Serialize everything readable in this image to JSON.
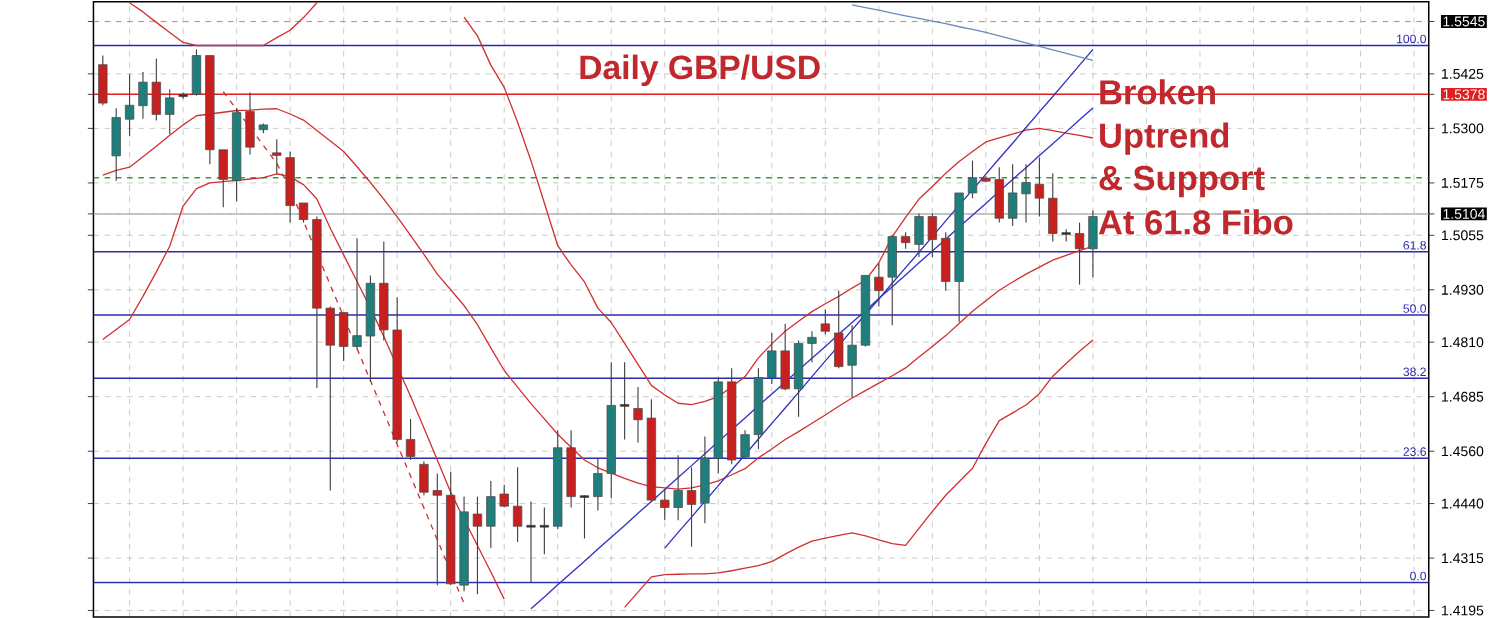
{
  "chart_data": {
    "type": "candlestick",
    "title": "Daily GBP/USD",
    "annotations": [
      "Broken",
      "Uptrend",
      "& Support",
      "At 61.8 Fibo",
      {
        "text": "100.0",
        "y": 1.549
      },
      {
        "text": "61.8",
        "y": 1.5017
      },
      {
        "text": "50.0",
        "y": 1.4872
      },
      {
        "text": "38.2",
        "y": 1.4727
      },
      {
        "text": "23.6",
        "y": 1.4544
      },
      {
        "text": "0.0",
        "y": 1.4259
      }
    ],
    "categories": [
      null,
      null,
      null,
      null,
      null,
      null,
      null,
      null,
      null,
      null,
      null,
      null,
      null,
      null,
      null,
      null,
      null,
      null,
      null,
      null,
      null,
      null,
      null,
      null,
      null,
      null,
      null,
      null,
      null,
      null,
      null,
      null,
      null,
      null,
      null,
      null,
      null,
      null,
      null,
      null,
      null,
      null,
      null,
      null,
      null,
      null,
      null,
      null,
      null,
      null,
      null,
      null,
      null,
      null,
      null,
      null,
      null,
      null,
      null,
      null,
      null,
      null,
      null,
      null,
      null,
      null,
      null,
      null,
      null,
      null,
      null,
      null,
      null,
      null,
      null
    ],
    "ohlc": [
      [
        1.5446,
        1.5467,
        1.5353,
        1.5358
      ],
      [
        1.5237,
        1.5346,
        1.518,
        1.5325
      ],
      [
        1.5321,
        1.5424,
        1.5282,
        1.5353
      ],
      [
        1.5352,
        1.5429,
        1.5322,
        1.5406
      ],
      [
        1.5406,
        1.546,
        1.5318,
        1.5332
      ],
      [
        1.5332,
        1.5389,
        1.5287,
        1.537
      ],
      [
        1.5375,
        1.5382,
        1.5368,
        1.5375
      ],
      [
        1.5378,
        1.5481,
        1.5375,
        1.5467
      ],
      [
        1.5467,
        1.5467,
        1.5218,
        1.5251
      ],
      [
        1.5251,
        1.5251,
        1.5119,
        1.5183
      ],
      [
        1.518,
        1.5346,
        1.5133,
        1.5336
      ],
      [
        1.5339,
        1.5382,
        1.524,
        1.5257
      ],
      [
        1.5297,
        1.5311,
        1.5289,
        1.5308
      ],
      [
        1.5244,
        1.5275,
        1.5197,
        1.5238
      ],
      [
        1.5233,
        1.5247,
        1.5084,
        1.5123
      ],
      [
        1.5129,
        1.5129,
        1.5084,
        1.5091
      ],
      [
        1.5091,
        1.5098,
        1.4705,
        1.4888
      ],
      [
        1.4888,
        1.4892,
        1.447,
        1.4803
      ],
      [
        1.4878,
        1.4878,
        1.4767,
        1.48
      ],
      [
        1.48,
        1.5048,
        1.4793,
        1.4825
      ],
      [
        1.4824,
        1.4963,
        1.4719,
        1.4945
      ],
      [
        1.4945,
        1.5041,
        1.4814,
        1.4838
      ],
      [
        1.4838,
        1.4913,
        1.458,
        1.4587
      ],
      [
        1.4587,
        1.4634,
        1.454,
        1.4548
      ],
      [
        1.453,
        1.4537,
        1.4459,
        1.4466
      ],
      [
        1.447,
        1.4509,
        1.4253,
        1.4459
      ],
      [
        1.4459,
        1.4513,
        1.4253,
        1.4256
      ],
      [
        1.4253,
        1.4456,
        1.4239,
        1.4421
      ],
      [
        1.4416,
        1.4456,
        1.4232,
        1.4388
      ],
      [
        1.4388,
        1.4492,
        1.4338,
        1.4456
      ],
      [
        1.4462,
        1.4483,
        1.4431,
        1.4434
      ],
      [
        1.4434,
        1.4523,
        1.4352,
        1.4388
      ],
      [
        1.4388,
        1.4445,
        1.426,
        1.4388
      ],
      [
        1.4388,
        1.4431,
        1.4324,
        1.4388
      ],
      [
        1.4388,
        1.4608,
        1.4381,
        1.4568
      ],
      [
        1.4568,
        1.4608,
        1.4431,
        1.4456
      ],
      [
        1.4456,
        1.4459,
        1.436,
        1.4456
      ],
      [
        1.4456,
        1.4544,
        1.4424,
        1.4509
      ],
      [
        1.4509,
        1.4764,
        1.4452,
        1.4665
      ],
      [
        1.4665,
        1.4764,
        1.4587,
        1.4665
      ],
      [
        1.4658,
        1.4707,
        1.458,
        1.4632
      ],
      [
        1.4636,
        1.4679,
        1.4445,
        1.4448
      ],
      [
        1.4448,
        1.4473,
        1.4402,
        1.4431
      ],
      [
        1.4431,
        1.4551,
        1.4402,
        1.447
      ],
      [
        1.447,
        1.4523,
        1.4341,
        1.4438
      ],
      [
        1.4441,
        1.4594,
        1.4395,
        1.4544
      ],
      [
        1.4544,
        1.4729,
        1.4509,
        1.4719
      ],
      [
        1.4719,
        1.475,
        1.453,
        1.454
      ],
      [
        1.4547,
        1.4608,
        1.4544,
        1.4598
      ],
      [
        1.4598,
        1.475,
        1.4565,
        1.4729
      ],
      [
        1.4729,
        1.4831,
        1.4714,
        1.479
      ],
      [
        1.479,
        1.4852,
        1.47,
        1.4703
      ],
      [
        1.4703,
        1.4814,
        1.4639,
        1.4807
      ],
      [
        1.4807,
        1.4835,
        1.4764,
        1.4821
      ],
      [
        1.4852,
        1.4885,
        1.4828,
        1.4835
      ],
      [
        1.4831,
        1.4928,
        1.475,
        1.4754
      ],
      [
        1.4757,
        1.4849,
        1.4683,
        1.4803
      ],
      [
        1.4803,
        1.4963,
        1.48,
        1.4963
      ],
      [
        1.4959,
        1.4991,
        1.4892,
        1.4928
      ],
      [
        1.4959,
        1.5055,
        1.4849,
        1.5052
      ],
      [
        1.5052,
        1.5062,
        1.5024,
        1.5038
      ],
      [
        1.5034,
        1.5105,
        1.5005,
        1.5098
      ],
      [
        1.5098,
        1.5105,
        1.5005,
        1.5045
      ],
      [
        1.5048,
        1.5062,
        1.4928,
        1.4949
      ],
      [
        1.4949,
        1.5152,
        1.4856,
        1.5152
      ],
      [
        1.5152,
        1.5226,
        1.514,
        1.5187
      ],
      [
        1.5186,
        1.519,
        1.5176,
        1.5179
      ],
      [
        1.5183,
        1.5211,
        1.5084,
        1.5094
      ],
      [
        1.5094,
        1.5218,
        1.5076,
        1.5152
      ],
      [
        1.515,
        1.5218,
        1.5084,
        1.5176
      ],
      [
        1.5172,
        1.5233,
        1.5098,
        1.514
      ],
      [
        1.514,
        1.5197,
        1.5041,
        1.5059
      ],
      [
        1.5059,
        1.5069,
        1.5041,
        1.5059
      ],
      [
        1.5059,
        1.5084,
        1.4942,
        1.5024
      ],
      [
        1.5024,
        1.5112,
        1.4959,
        1.5098
      ]
    ],
    "series": [
      {
        "type": "line",
        "color": "#d03030",
        "values": [
          null,
          null,
          1.5588,
          1.5567,
          1.5543,
          1.552,
          1.5497,
          1.549,
          1.549,
          1.549,
          1.549,
          1.549,
          1.549,
          1.5508,
          1.5525,
          1.5554,
          1.5588,
          null,
          null,
          null,
          null,
          null,
          null,
          null,
          null,
          null,
          null,
          1.5555,
          1.5512,
          1.5445,
          1.5394,
          1.5314,
          1.5226,
          1.5129,
          1.5031,
          1.4987,
          1.4948,
          1.4888,
          1.4855,
          1.4807,
          1.4759,
          1.4711,
          1.4689,
          1.467,
          1.4667,
          1.4674,
          1.4685,
          1.4708,
          1.4731,
          1.4774,
          1.4806,
          1.4835,
          1.4858,
          1.488,
          1.4898,
          1.4915,
          1.4934,
          1.4952,
          1.4992,
          1.5052,
          1.5096,
          1.5138,
          1.5167,
          1.5197,
          1.5224,
          1.5247,
          1.5269,
          1.5278,
          1.5287,
          1.5296,
          1.53,
          1.5295,
          1.5289,
          1.5284,
          1.5278
        ]
      },
      {
        "type": "line",
        "color": "#d03030",
        "values": [
          1.5193,
          1.5204,
          1.5211,
          1.5235,
          1.5259,
          1.5284,
          1.5308,
          1.5329,
          1.5333,
          1.5337,
          1.5341,
          1.5342,
          1.5344,
          1.5345,
          1.5333,
          1.5319,
          1.5295,
          1.5271,
          1.5247,
          1.5212,
          1.5176,
          1.5138,
          1.5097,
          1.5055,
          1.5011,
          1.4966,
          1.493,
          1.4894,
          1.485,
          1.4797,
          1.4745,
          1.4707,
          1.4669,
          1.4634,
          1.4599,
          1.4569,
          1.454,
          1.4522,
          1.451,
          1.4498,
          1.4487,
          1.4479,
          1.4476,
          1.4473,
          1.4476,
          1.4483,
          1.4492,
          1.4506,
          1.452,
          1.4545,
          1.4565,
          1.4587,
          1.4605,
          1.4624,
          1.4643,
          1.4663,
          1.4682,
          1.4699,
          1.4716,
          1.4733,
          1.4751,
          1.4776,
          1.48,
          1.4825,
          1.4853,
          1.4881,
          1.4905,
          1.4929,
          1.4948,
          1.4966,
          1.4982,
          1.4998,
          1.5009,
          1.502,
          1.503
        ]
      },
      {
        "type": "line",
        "color": "#d03030",
        "values": [
          1.4816,
          1.4839,
          1.4862,
          1.4915,
          1.4971,
          1.503,
          1.5122,
          1.5162,
          1.5175,
          1.5178,
          1.5181,
          1.5184,
          1.5187,
          1.5196,
          1.5189,
          1.5171,
          1.5138,
          1.5071,
          1.501,
          1.4949,
          1.4888,
          1.4823,
          1.4754,
          1.4686,
          1.4613,
          1.454,
          1.4466,
          1.4404,
          1.4344,
          1.4283,
          1.4221,
          null,
          null,
          null,
          null,
          null,
          null,
          null,
          null,
          1.4202,
          1.4237,
          1.4272,
          1.4277,
          1.4278,
          1.4279,
          1.4279,
          1.4281,
          1.4286,
          1.4292,
          1.4298,
          1.4307,
          1.4324,
          1.434,
          1.4354,
          1.4361,
          1.4367,
          1.4373,
          1.4366,
          1.4357,
          1.4348,
          1.4344,
          1.4383,
          1.4422,
          1.4459,
          1.449,
          1.4521,
          1.4578,
          1.463,
          1.4648,
          1.4666,
          1.4692,
          1.4732,
          1.4761,
          1.4789,
          1.4815
        ]
      },
      {
        "type": "line",
        "color": "#3030c0",
        "values": [
          null,
          null,
          null,
          null,
          null,
          null,
          null,
          null,
          null,
          null,
          null,
          null,
          null,
          null,
          null,
          null,
          null,
          null,
          null,
          null,
          null,
          null,
          null,
          null,
          null,
          null,
          null,
          null,
          null,
          null,
          null,
          null,
          1.4199,
          1.4226,
          1.4254,
          1.4281,
          1.4308,
          1.4336,
          1.4363,
          1.439,
          1.4418,
          1.4445,
          1.4472,
          1.45,
          1.4527,
          1.4554,
          1.4582,
          1.4609,
          1.4636,
          1.4664,
          1.4691,
          1.4718,
          1.4746,
          1.4773,
          1.48,
          1.4828,
          1.4855,
          1.4882,
          1.491,
          1.4937,
          1.4964,
          1.4992,
          1.5019,
          1.5046,
          1.5074,
          1.5101,
          1.5128,
          1.5156,
          1.5183,
          1.521,
          1.5238,
          1.5265,
          1.5292,
          1.532,
          1.5347
        ]
      },
      {
        "type": "line",
        "color": "#3030c0",
        "values": [
          null,
          null,
          null,
          null,
          null,
          null,
          null,
          null,
          null,
          null,
          null,
          null,
          null,
          null,
          null,
          null,
          null,
          null,
          null,
          null,
          null,
          null,
          null,
          null,
          null,
          null,
          null,
          null,
          null,
          null,
          null,
          null,
          null,
          null,
          null,
          null,
          null,
          null,
          null,
          null,
          null,
          null,
          1.4338,
          1.4374,
          1.4409,
          1.4445,
          1.4481,
          1.4517,
          1.4552,
          1.4588,
          1.4624,
          1.4659,
          1.4695,
          1.4731,
          1.4767,
          1.4802,
          1.4838,
          1.4874,
          1.4909,
          1.4945,
          1.4981,
          1.5016,
          1.5052,
          1.5088,
          1.5124,
          1.5159,
          1.5195,
          1.5231,
          1.5266,
          1.5302,
          1.5338,
          1.5373,
          1.5409,
          1.5445,
          1.5481
        ]
      },
      {
        "type": "line",
        "color": "#6a8cb8",
        "values": [
          null,
          null,
          null,
          null,
          null,
          null,
          null,
          null,
          null,
          null,
          null,
          null,
          null,
          null,
          null,
          null,
          null,
          null,
          null,
          null,
          null,
          null,
          null,
          null,
          null,
          null,
          null,
          null,
          null,
          null,
          null,
          null,
          null,
          null,
          null,
          null,
          null,
          null,
          null,
          null,
          null,
          null,
          null,
          null,
          null,
          null,
          null,
          null,
          null,
          null,
          null,
          null,
          null,
          null,
          null,
          null,
          1.5583,
          1.5577,
          1.5571,
          1.5564,
          1.5558,
          1.5552,
          1.5546,
          1.554,
          1.5533,
          1.5527,
          1.552,
          1.5512,
          1.5504,
          1.5496,
          1.5488,
          1.548,
          1.5472,
          1.5464,
          1.5456
        ]
      },
      {
        "type": "line",
        "color": "#d03030",
        "line_style": "dashed",
        "values": [
          null,
          null,
          null,
          null,
          null,
          null,
          null,
          null,
          null,
          1.5384,
          1.5343,
          1.5302,
          1.5261,
          1.522,
          1.516,
          1.5087,
          1.5014,
          1.4941,
          1.4868,
          1.4795,
          1.4722,
          1.4649,
          1.4576,
          1.4503,
          1.443,
          1.4357,
          1.4284,
          1.4211,
          null,
          null,
          null,
          null,
          null,
          null,
          null,
          null,
          null,
          null,
          null,
          null,
          null,
          null,
          null,
          null,
          null,
          null,
          null,
          null,
          null,
          null,
          null,
          null,
          null,
          null,
          null,
          null,
          null,
          null,
          null,
          null,
          null,
          null,
          null,
          null,
          null,
          null,
          null,
          null,
          null,
          null,
          null,
          null,
          null,
          null,
          null
        ]
      }
    ],
    "ref_lines": [
      {
        "axis": "y",
        "value": 1.549,
        "color": "#2b2bb0"
      },
      {
        "axis": "y",
        "value": 1.5017,
        "color": "#2b2bb0"
      },
      {
        "axis": "y",
        "value": 1.4872,
        "color": "#2b2bb0"
      },
      {
        "axis": "y",
        "value": 1.4727,
        "color": "#2b2bb0"
      },
      {
        "axis": "y",
        "value": 1.4544,
        "color": "#2b2bb0"
      },
      {
        "axis": "y",
        "value": 1.4259,
        "color": "#2b2bb0"
      },
      {
        "axis": "y",
        "value": 1.5378,
        "color": "#e02020"
      },
      {
        "axis": "y",
        "value": 1.5104,
        "color": "#b4b4b4"
      },
      {
        "axis": "y",
        "value": 1.5187,
        "color": "#3c9a3c",
        "line_style": "dashed"
      },
      {
        "axis": "y",
        "value": 1.5545,
        "color": "#d2966e",
        "line_style": "dashed"
      }
    ],
    "ylim": [
      1.418,
      1.559
    ],
    "yticks": [
      1.5545,
      1.5425,
      1.5378,
      {
        "value": 1.53,
        "label": "1.5300"
      },
      1.5175,
      1.5104,
      1.5055,
      {
        "value": 1.493,
        "label": "1.4930"
      },
      {
        "value": 1.481,
        "label": "1.4810"
      },
      1.4685,
      {
        "value": 1.456,
        "label": "1.4560"
      },
      {
        "value": 1.444,
        "label": "1.4440"
      },
      1.4315,
      1.4195
    ],
    "tick_labels": "y",
    "grid": true
  }
}
